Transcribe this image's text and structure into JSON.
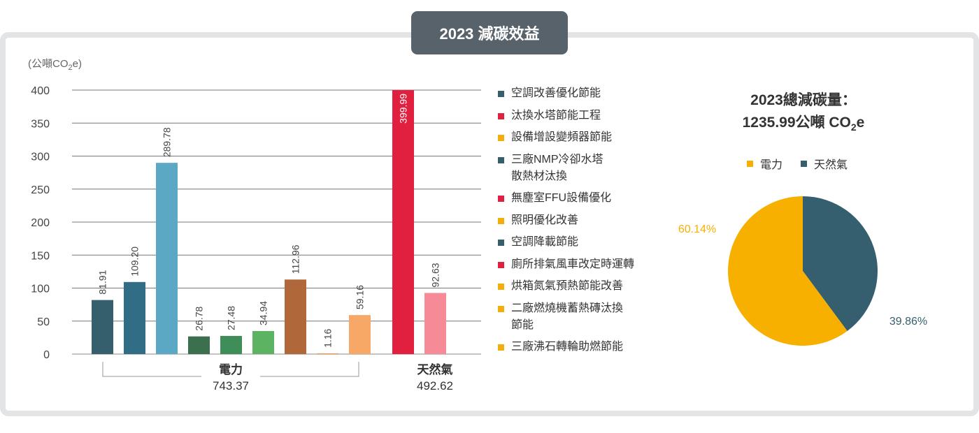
{
  "header": {
    "title": "2023 減碳效益"
  },
  "bar_chart": {
    "unit_label": [
      "(公噸CO",
      "2",
      "e)"
    ],
    "yticks": [
      "400",
      "350",
      "300",
      "250",
      "200",
      "150",
      "100",
      "50",
      "0"
    ],
    "groups": [
      {
        "name": "電力",
        "total": "743.37"
      },
      {
        "name": "天然氣",
        "total": "492.62"
      }
    ]
  },
  "chart_data": [
    {
      "type": "bar",
      "title": "",
      "xlabel": "",
      "ylabel": "(公噸CO2e)",
      "ylim": [
        0,
        400
      ],
      "grid": true,
      "categories": [
        "空調改善優化節能",
        "汰換水塔節能工程",
        "設備增設變頻器節能",
        "三廠NMP冷卻水塔散熱材汰換",
        "無塵室FFU設備優化",
        "照明優化改善",
        "空調降載節能",
        "廁所排氣風車改定時運轉",
        "烘箱氮氣預熱節能改善",
        "二廠燃燒機蓄熱磚汰換節能",
        "三廠沸石轉輪助燃節能"
      ],
      "bars": [
        {
          "label": "81.91",
          "value": 81.91,
          "color": "#365f6e",
          "group": "電力"
        },
        {
          "label": "109.20",
          "value": 109.2,
          "color": "#326d86",
          "group": "電力"
        },
        {
          "label": "289.78",
          "value": 289.78,
          "color": "#5aa8c4",
          "group": "電力"
        },
        {
          "label": "26.78",
          "value": 26.78,
          "color": "#3b6f4d",
          "group": "電力"
        },
        {
          "label": "27.48",
          "value": 27.48,
          "color": "#3f8e5a",
          "group": "電力"
        },
        {
          "label": "34.94",
          "value": 34.94,
          "color": "#5cb463",
          "group": "電力"
        },
        {
          "label": "112.96",
          "value": 112.96,
          "color": "#b0683a",
          "group": "電力"
        },
        {
          "label": "1.16",
          "value": 1.16,
          "color": "#f39a4c",
          "group": "電力"
        },
        {
          "label": "59.16",
          "value": 59.16,
          "color": "#f8a866",
          "group": "電力"
        },
        {
          "label": "399.99",
          "value": 399.99,
          "color": "#e0203e",
          "group": "天然氣"
        },
        {
          "label": "92.63",
          "value": 92.63,
          "color": "#f68b97",
          "group": "天然氣"
        }
      ],
      "legend": {
        "placement": "right",
        "items": [
          {
            "label": "空調改善優化節能",
            "lines": [
              "空調改善優化節能"
            ],
            "color": "#365f6e"
          },
          {
            "label": "汰換水塔節能工程",
            "lines": [
              "汰換水塔節能工程"
            ],
            "color": "#e0203e"
          },
          {
            "label": "設備增設變頻器節能",
            "lines": [
              "設備增設變頻器節能"
            ],
            "color": "#f5ad0d"
          },
          {
            "label": "三廠NMP冷卻水塔散熱材汰換",
            "lines": [
              "三廠NMP冷卻水塔",
              "散熱材汰換"
            ],
            "color": "#365f6e"
          },
          {
            "label": "無塵室FFU設備優化",
            "lines": [
              "無塵室FFU設備優化"
            ],
            "color": "#e0203e"
          },
          {
            "label": "照明優化改善",
            "lines": [
              "照明優化改善"
            ],
            "color": "#f5ad0d"
          },
          {
            "label": "空調降載節能",
            "lines": [
              "空調降載節能"
            ],
            "color": "#365f6e"
          },
          {
            "label": "廁所排氣風車改定時運轉",
            "lines": [
              "廁所排氣風車改定時運轉"
            ],
            "color": "#e0203e"
          },
          {
            "label": "烘箱氮氣預熱節能改善",
            "lines": [
              "烘箱氮氣預熱節能改善"
            ],
            "color": "#f5ad0d"
          },
          {
            "label": "二廠燃燒機蓄熱磚汰換節能",
            "lines": [
              "二廠燃燒機蓄熱磚汰換",
              "節能"
            ],
            "color": "#f5ad0d"
          },
          {
            "label": "三廠沸石轉輪助燃節能",
            "lines": [
              "三廠沸石轉輪助燃節能"
            ],
            "color": "#f5ad0d"
          }
        ]
      }
    },
    {
      "type": "pie",
      "title_lines": [
        "2023總減碳量：",
        "1235.99公噸 CO",
        "2",
        "e"
      ],
      "legend": {
        "placement": "top"
      },
      "slices": [
        {
          "name": "電力",
          "value": 60.14,
          "label": "60.14%",
          "color": "#f8b000"
        },
        {
          "name": "天然氣",
          "value": 39.86,
          "label": "39.86%",
          "color": "#355f6e"
        }
      ]
    }
  ]
}
